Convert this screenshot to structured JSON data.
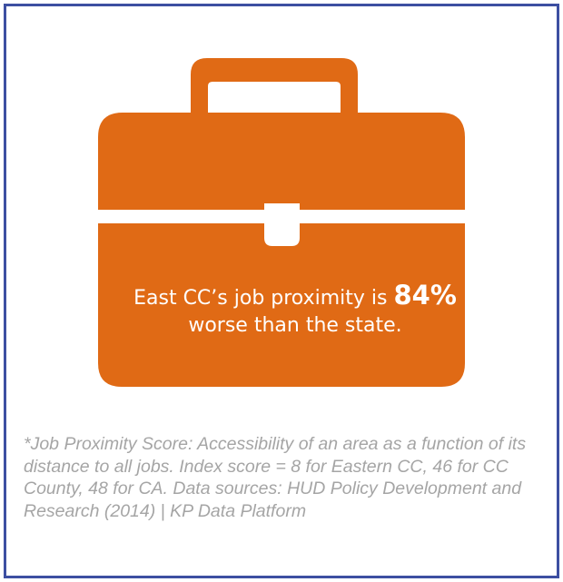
{
  "colors": {
    "accent": "#e06a15",
    "border": "#3d4fa1",
    "note_text": "#a5a5a5"
  },
  "icon": "briefcase-icon",
  "headline": {
    "prefix": "East CC’s job proximity is ",
    "value": "84%",
    "suffix": "worse than the state."
  },
  "footnote": "*Job Proximity Score: Accessibility of an area as a function of its distance to all jobs. Index score = 8 for Eastern CC, 46 for CC County, 48 for CA. Data sources: HUD Policy Development and Research (2014) | KP Data Platform"
}
